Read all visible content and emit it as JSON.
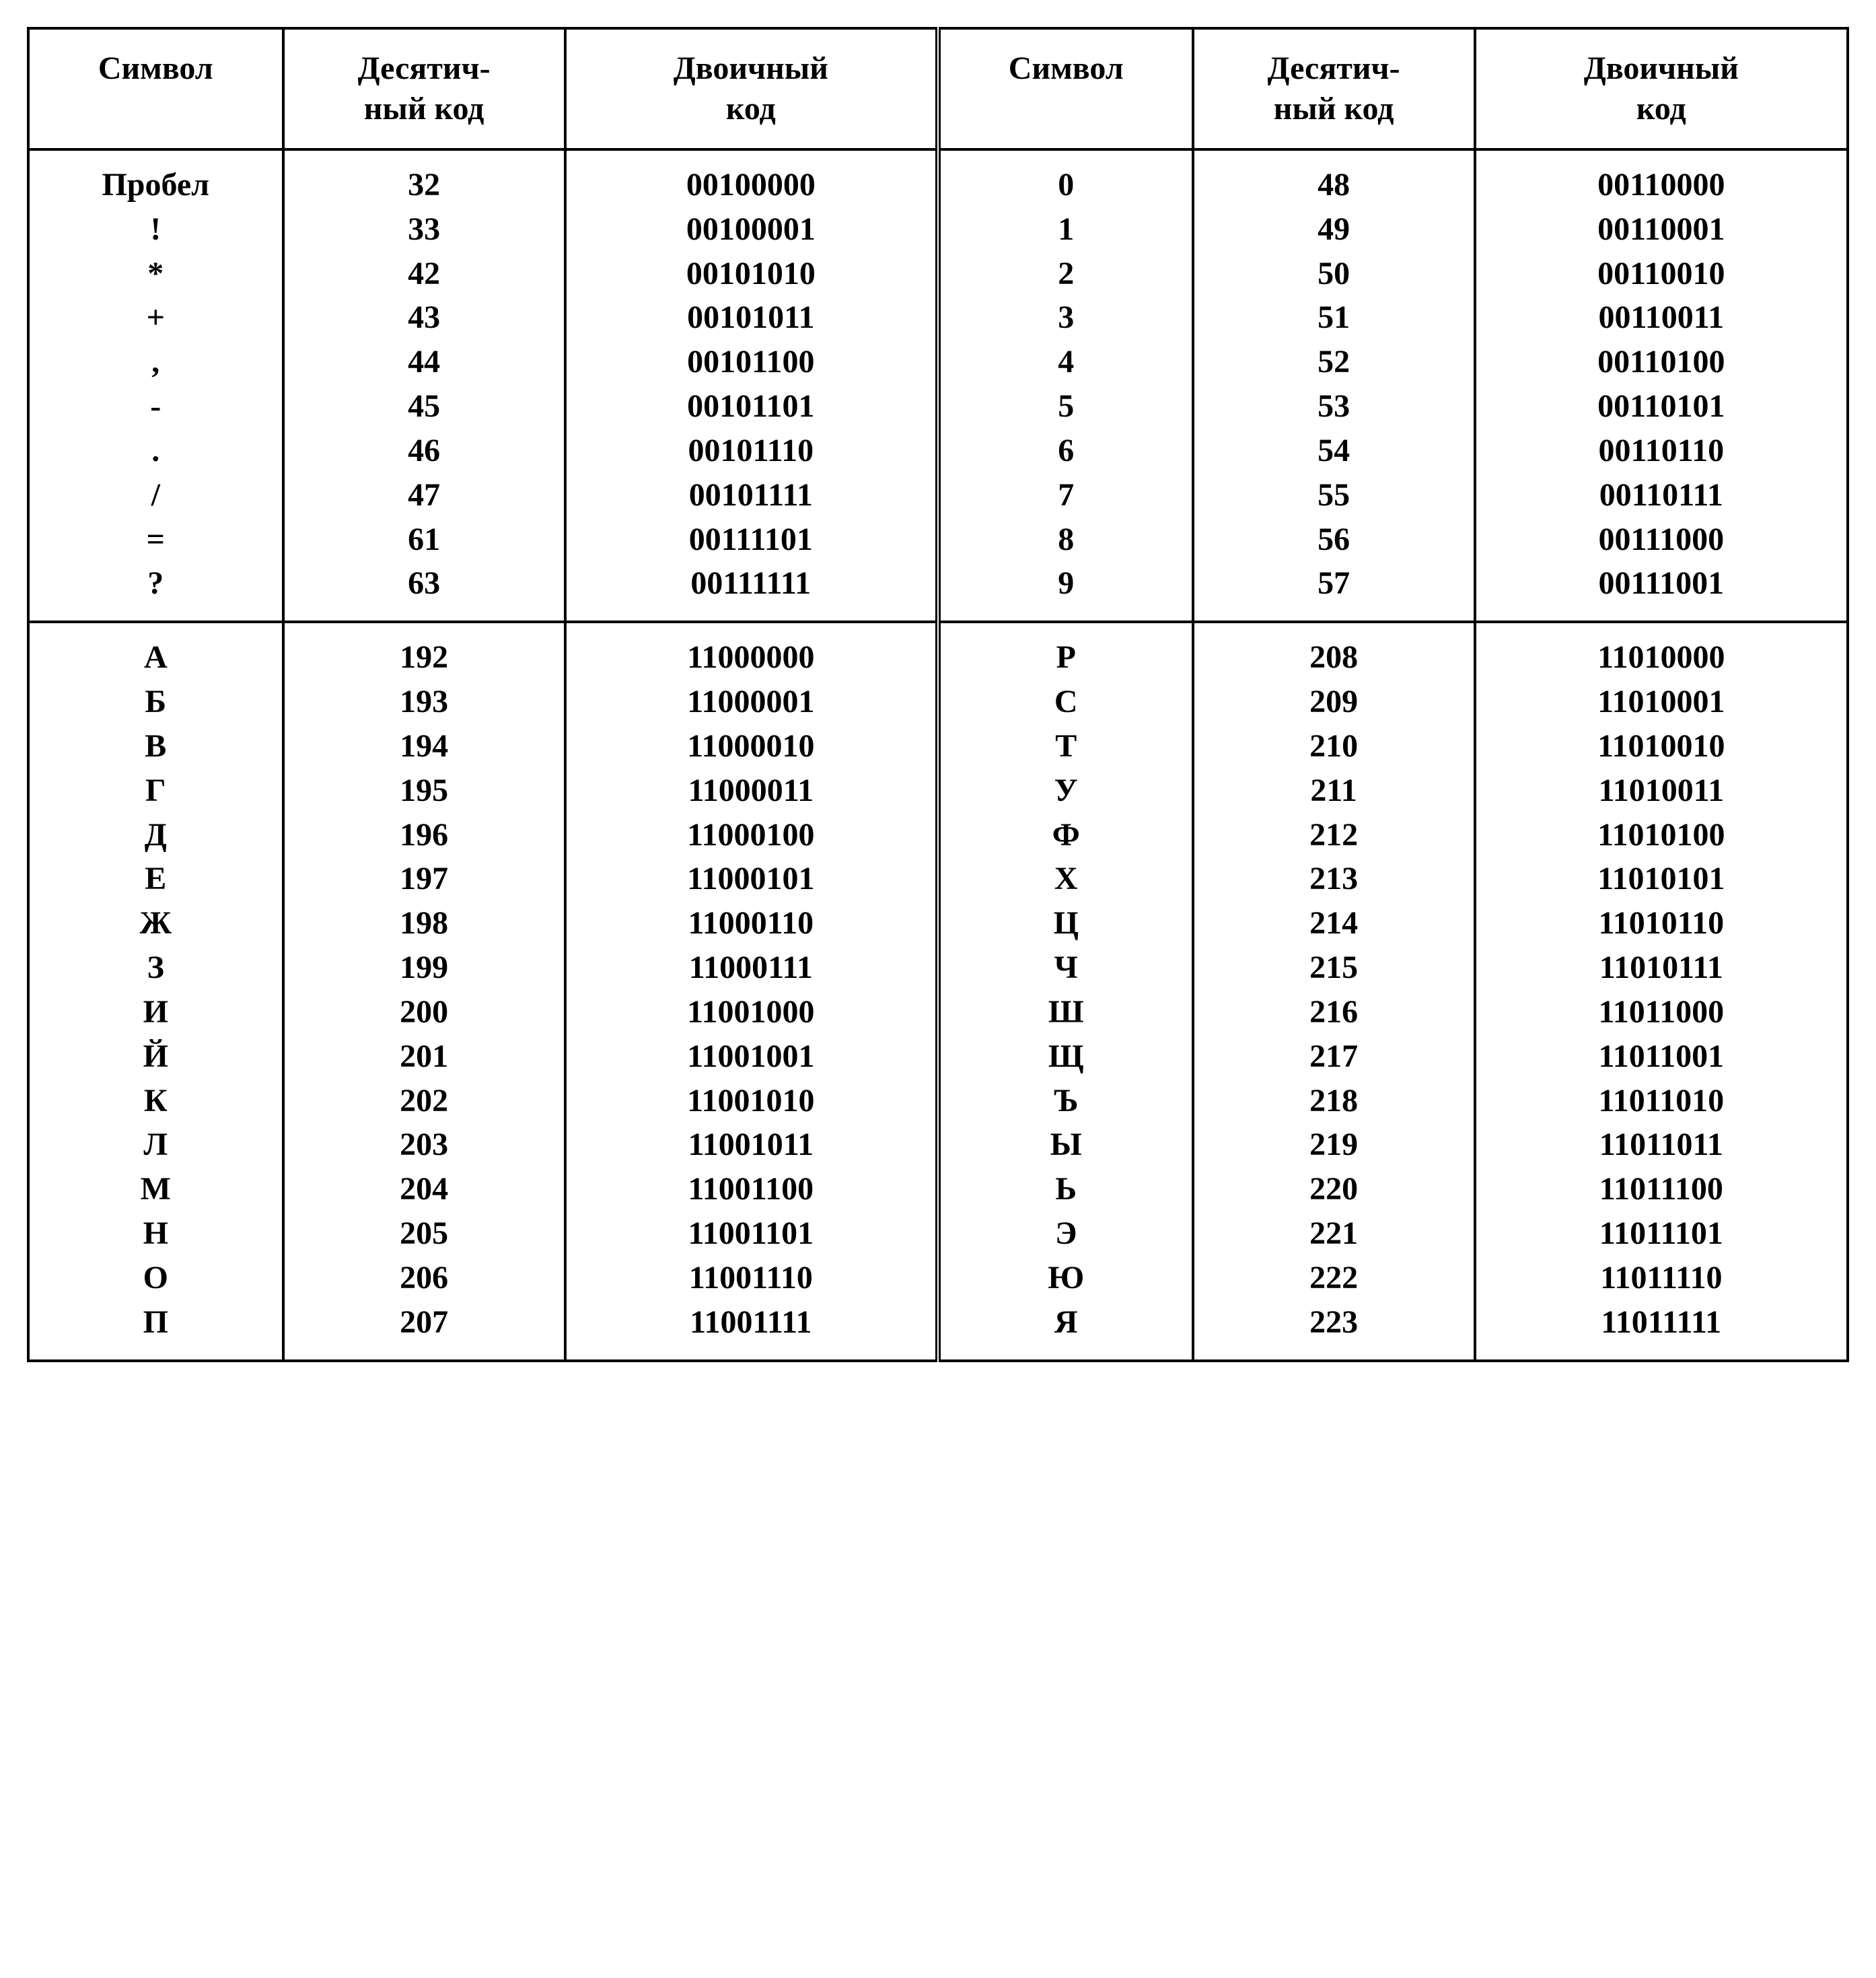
{
  "headers": {
    "symbol": "Символ",
    "decimal": "Десятич-\nный код",
    "binary": "Двоичный\nкод"
  },
  "sections": [
    {
      "left": [
        {
          "sym": "Пробел",
          "dec": "32",
          "bin": "00100000"
        },
        {
          "sym": "!",
          "dec": "33",
          "bin": "00100001"
        },
        {
          "sym": "*",
          "dec": "42",
          "bin": "00101010"
        },
        {
          "sym": "+",
          "dec": "43",
          "bin": "00101011"
        },
        {
          "sym": ",",
          "dec": "44",
          "bin": "00101100"
        },
        {
          "sym": "-",
          "dec": "45",
          "bin": "00101101"
        },
        {
          "sym": ".",
          "dec": "46",
          "bin": "00101110"
        },
        {
          "sym": "/",
          "dec": "47",
          "bin": "00101111"
        },
        {
          "sym": "=",
          "dec": "61",
          "bin": "00111101"
        },
        {
          "sym": "?",
          "dec": "63",
          "bin": "00111111"
        }
      ],
      "right": [
        {
          "sym": "0",
          "dec": "48",
          "bin": "00110000"
        },
        {
          "sym": "1",
          "dec": "49",
          "bin": "00110001"
        },
        {
          "sym": "2",
          "dec": "50",
          "bin": "00110010"
        },
        {
          "sym": "3",
          "dec": "51",
          "bin": "00110011"
        },
        {
          "sym": "4",
          "dec": "52",
          "bin": "00110100"
        },
        {
          "sym": "5",
          "dec": "53",
          "bin": "00110101"
        },
        {
          "sym": "6",
          "dec": "54",
          "bin": "00110110"
        },
        {
          "sym": "7",
          "dec": "55",
          "bin": "00110111"
        },
        {
          "sym": "8",
          "dec": "56",
          "bin": "00111000"
        },
        {
          "sym": "9",
          "dec": "57",
          "bin": "00111001"
        }
      ]
    },
    {
      "left": [
        {
          "sym": "А",
          "dec": "192",
          "bin": "11000000"
        },
        {
          "sym": "Б",
          "dec": "193",
          "bin": "11000001"
        },
        {
          "sym": "В",
          "dec": "194",
          "bin": "11000010"
        },
        {
          "sym": "Г",
          "dec": "195",
          "bin": "11000011"
        },
        {
          "sym": "Д",
          "dec": "196",
          "bin": "11000100"
        },
        {
          "sym": "Е",
          "dec": "197",
          "bin": "11000101"
        },
        {
          "sym": "Ж",
          "dec": "198",
          "bin": "11000110"
        },
        {
          "sym": "З",
          "dec": "199",
          "bin": "11000111"
        },
        {
          "sym": "И",
          "dec": "200",
          "bin": "11001000"
        },
        {
          "sym": "Й",
          "dec": "201",
          "bin": "11001001"
        },
        {
          "sym": "К",
          "dec": "202",
          "bin": "11001010"
        },
        {
          "sym": "Л",
          "dec": "203",
          "bin": "11001011"
        },
        {
          "sym": "М",
          "dec": "204",
          "bin": "11001100"
        },
        {
          "sym": "Н",
          "dec": "205",
          "bin": "11001101"
        },
        {
          "sym": "О",
          "dec": "206",
          "bin": "11001110"
        },
        {
          "sym": "П",
          "dec": "207",
          "bin": "11001111"
        }
      ],
      "right": [
        {
          "sym": "Р",
          "dec": "208",
          "bin": "11010000"
        },
        {
          "sym": "С",
          "dec": "209",
          "bin": "11010001"
        },
        {
          "sym": "Т",
          "dec": "210",
          "bin": "11010010"
        },
        {
          "sym": "У",
          "dec": "211",
          "bin": "11010011"
        },
        {
          "sym": "Ф",
          "dec": "212",
          "bin": "11010100"
        },
        {
          "sym": "Х",
          "dec": "213",
          "bin": "11010101"
        },
        {
          "sym": "Ц",
          "dec": "214",
          "bin": "11010110"
        },
        {
          "sym": "Ч",
          "dec": "215",
          "bin": "11010111"
        },
        {
          "sym": "Ш",
          "dec": "216",
          "bin": "11011000"
        },
        {
          "sym": "Щ",
          "dec": "217",
          "bin": "11011001"
        },
        {
          "sym": "Ъ",
          "dec": "218",
          "bin": "11011010"
        },
        {
          "sym": "Ы",
          "dec": "219",
          "bin": "11011011"
        },
        {
          "sym": "Ь",
          "dec": "220",
          "bin": "11011100"
        },
        {
          "sym": "Э",
          "dec": "221",
          "bin": "11011101"
        },
        {
          "sym": "Ю",
          "dec": "222",
          "bin": "11011110"
        },
        {
          "sym": "Я",
          "dec": "223",
          "bin": "11011111"
        }
      ]
    }
  ]
}
